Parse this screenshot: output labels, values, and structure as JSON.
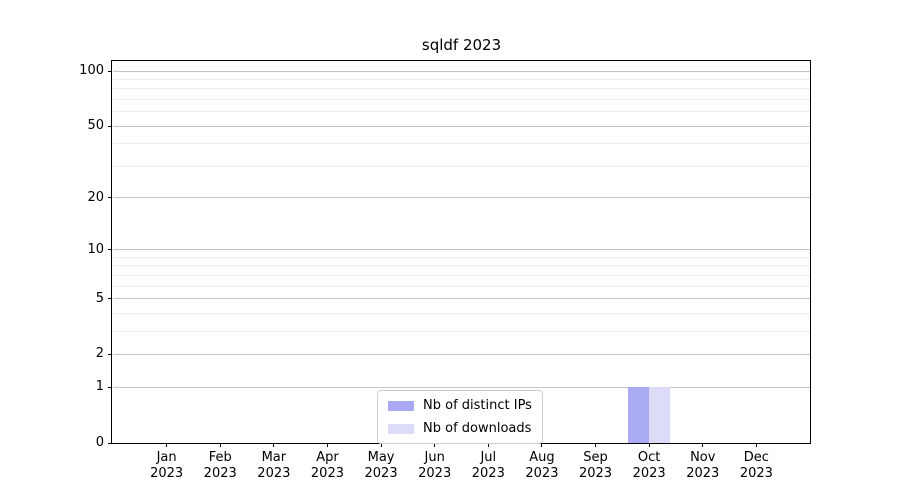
{
  "chart_data": {
    "type": "bar",
    "title": "sqldf 2023",
    "categories": [
      "Jan\n2023",
      "Feb\n2023",
      "Mar\n2023",
      "Apr\n2023",
      "May\n2023",
      "Jun\n2023",
      "Jul\n2023",
      "Aug\n2023",
      "Sep\n2023",
      "Oct\n2023",
      "Nov\n2023",
      "Dec\n2023"
    ],
    "series": [
      {
        "name": "Nb of distinct IPs",
        "color": "#aaaaf2",
        "values": [
          0,
          0,
          0,
          0,
          0,
          0,
          0,
          0,
          0,
          1,
          0,
          0
        ]
      },
      {
        "name": "Nb of downloads",
        "color": "#dcdcf8",
        "values": [
          0,
          0,
          0,
          0,
          0,
          0,
          0,
          0,
          0,
          1,
          0,
          0
        ]
      }
    ],
    "xlabel": "",
    "ylabel": "",
    "y_scale": "log1p",
    "y_major_ticks": [
      0,
      1,
      2,
      5,
      10,
      20,
      50,
      100
    ],
    "y_minor_gridlines": [
      3,
      4,
      6,
      7,
      8,
      9,
      30,
      40,
      60,
      70,
      80,
      90
    ],
    "ylim": [
      0,
      110
    ],
    "grid": "horizontal",
    "legend_position": "lower center",
    "colors": {
      "major_grid": "#c4c4c4",
      "minor_grid": "#ededed",
      "spine": "#000000",
      "background": "#ffffff"
    }
  }
}
